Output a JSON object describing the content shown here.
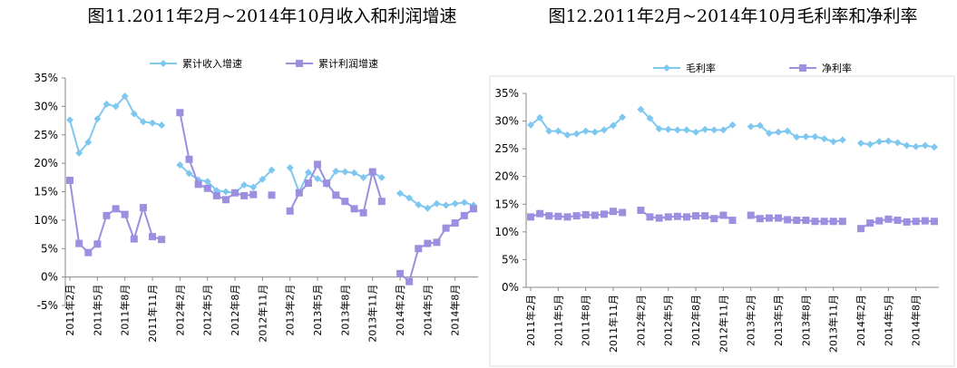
{
  "chart_data": [
    {
      "type": "line",
      "title": "图11.2011年2月~2014年10月收入和利润增速",
      "categories": [
        "2011年2月",
        null,
        null,
        "2011年5月",
        null,
        null,
        "2011年8月",
        null,
        null,
        "2011年11月",
        null,
        null,
        "2012年2月",
        null,
        null,
        "2012年5月",
        null,
        null,
        "2012年8月",
        null,
        null,
        "2012年11月",
        null,
        null,
        "2013年2月",
        null,
        null,
        "2013年5月",
        null,
        null,
        "2013年8月",
        null,
        null,
        "2013年11月",
        null,
        null,
        "2014年2月",
        null,
        null,
        "2014年5月",
        null,
        null,
        "2014年8月",
        null,
        null
      ],
      "series": [
        {
          "name": "累计收入增速",
          "color": "#7ec8f0",
          "marker": "diamond",
          "values": [
            27.6,
            21.8,
            23.7,
            27.8,
            30.4,
            30,
            31.8,
            28.7,
            27.3,
            27.1,
            26.7,
            null,
            19.7,
            18.2,
            17.1,
            16.8,
            15.2,
            15,
            14.8,
            16.2,
            15.8,
            17.2,
            18.8,
            null,
            19.2,
            14.9,
            18.4,
            17.3,
            16.3,
            18.6,
            18.5,
            18.3,
            17.5,
            18.4,
            17.5,
            null,
            14.7,
            13.9,
            12.7,
            12.1,
            12.9,
            12.6,
            12.9,
            13.1,
            12.6
          ]
        },
        {
          "name": "累计利润增速",
          "color": "#9b8fe0",
          "marker": "square",
          "values": [
            17,
            5.9,
            4.3,
            5.8,
            10.8,
            12,
            11,
            6.7,
            12.2,
            7.1,
            6.6,
            null,
            28.9,
            20.7,
            16.3,
            15.6,
            14.3,
            13.6,
            14.8,
            14.3,
            14.5,
            null,
            14.4,
            null,
            11.6,
            14.8,
            16.5,
            19.8,
            16.5,
            14.4,
            13.3,
            12,
            11.3,
            18.5,
            13.3,
            null,
            0.6,
            -0.8,
            5,
            5.9,
            6.1,
            8.6,
            9.5,
            10.8,
            12
          ]
        }
      ],
      "ylim": [
        -5,
        35
      ],
      "yticks": [
        {
          "value": -5,
          "label": "-5%"
        },
        {
          "value": 0,
          "label": "0%"
        },
        {
          "value": 5,
          "label": "5%"
        },
        {
          "value": 10,
          "label": "10%"
        },
        {
          "value": 15,
          "label": "15%"
        },
        {
          "value": 20,
          "label": "20%"
        },
        {
          "value": 25,
          "label": "25%"
        },
        {
          "value": 30,
          "label": "30%"
        },
        {
          "value": 35,
          "label": "35%"
        }
      ],
      "grid": false
    },
    {
      "type": "line",
      "title": "图12.2011年2月~2014年10月毛利率和净利率",
      "categories": [
        "2011年2月",
        null,
        null,
        "2011年5月",
        null,
        null,
        "2011年8月",
        null,
        null,
        "2011年11月",
        null,
        null,
        "2012年2月",
        null,
        null,
        "2012年5月",
        null,
        null,
        "2012年8月",
        null,
        null,
        "2012年11月",
        null,
        null,
        "2013年2月",
        null,
        null,
        "2013年5月",
        null,
        null,
        "2013年8月",
        null,
        null,
        "2013年11月",
        null,
        null,
        "2014年2月",
        null,
        null,
        "2014年5月",
        null,
        null,
        "2014年8月",
        null,
        null
      ],
      "series": [
        {
          "name": "毛利率",
          "color": "#7ec8f0",
          "marker": "diamond",
          "values": [
            29.3,
            30.6,
            28.2,
            28.2,
            27.5,
            27.7,
            28.2,
            28,
            28.4,
            29.2,
            30.7,
            null,
            32.1,
            30.5,
            28.6,
            28.5,
            28.4,
            28.4,
            28,
            28.5,
            28.4,
            28.4,
            29.3,
            null,
            29,
            29.2,
            27.8,
            28,
            28.2,
            27.1,
            27.2,
            27.2,
            26.8,
            26.3,
            26.6,
            null,
            26,
            25.8,
            26.3,
            26.4,
            26.1,
            25.6,
            25.4,
            25.6,
            25.3
          ]
        },
        {
          "name": "净利率",
          "color": "#9b8fe0",
          "marker": "square",
          "values": [
            12.7,
            13.3,
            12.9,
            12.8,
            12.7,
            12.9,
            13.1,
            13,
            13.2,
            13.7,
            13.5,
            null,
            13.9,
            12.7,
            12.5,
            12.7,
            12.8,
            12.7,
            12.9,
            12.9,
            12.4,
            13,
            12.1,
            null,
            13,
            12.4,
            12.5,
            12.5,
            12.2,
            12.1,
            12.1,
            11.9,
            11.9,
            11.9,
            11.9,
            null,
            10.6,
            11.6,
            12,
            12.3,
            12.1,
            11.8,
            11.9,
            12,
            11.9
          ]
        }
      ],
      "ylim": [
        0,
        35
      ],
      "yticks": [
        {
          "value": 0,
          "label": "0%"
        },
        {
          "value": 5,
          "label": "5%"
        },
        {
          "value": 10,
          "label": "10%"
        },
        {
          "value": 15,
          "label": "15%"
        },
        {
          "value": 20,
          "label": "20%"
        },
        {
          "value": 25,
          "label": "25%"
        },
        {
          "value": 30,
          "label": "30%"
        },
        {
          "value": 35,
          "label": "35%"
        }
      ],
      "grid": false
    }
  ]
}
